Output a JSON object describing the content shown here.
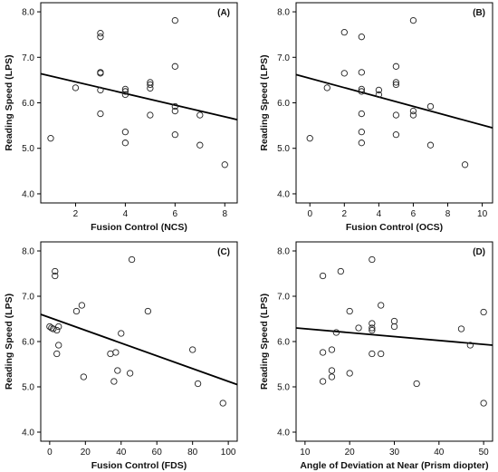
{
  "chart_data": [
    {
      "type": "scatter",
      "panel_label": "(A)",
      "xlabel": "Fusion Control (NCS)",
      "ylabel": "Reading Speed (LPS)",
      "xlim": [
        0.6,
        8.5
      ],
      "ylim": [
        3.8,
        8.2
      ],
      "xticks": [
        2,
        4,
        6,
        8
      ],
      "yticks": [
        4.0,
        5.0,
        6.0,
        7.0,
        8.0
      ],
      "xtick_labels": [
        "2",
        "4",
        "6",
        "8"
      ],
      "ytick_labels": [
        "4.0",
        "5.0",
        "6.0",
        "7.0",
        "8.0"
      ],
      "grid": false,
      "points": [
        {
          "x": 1,
          "y": 5.22
        },
        {
          "x": 2,
          "y": 6.33
        },
        {
          "x": 3,
          "y": 7.53
        },
        {
          "x": 3,
          "y": 7.45
        },
        {
          "x": 3,
          "y": 6.67
        },
        {
          "x": 3,
          "y": 6.65
        },
        {
          "x": 3,
          "y": 6.28
        },
        {
          "x": 3,
          "y": 5.76
        },
        {
          "x": 4,
          "y": 6.3
        },
        {
          "x": 4,
          "y": 6.25
        },
        {
          "x": 4,
          "y": 6.18
        },
        {
          "x": 4,
          "y": 5.36
        },
        {
          "x": 4,
          "y": 5.12
        },
        {
          "x": 5,
          "y": 6.45
        },
        {
          "x": 5,
          "y": 6.4
        },
        {
          "x": 5,
          "y": 6.32
        },
        {
          "x": 5,
          "y": 5.73
        },
        {
          "x": 6,
          "y": 7.81
        },
        {
          "x": 6,
          "y": 6.8
        },
        {
          "x": 6,
          "y": 5.92
        },
        {
          "x": 6,
          "y": 5.82
        },
        {
          "x": 6,
          "y": 5.3
        },
        {
          "x": 7,
          "y": 5.73
        },
        {
          "x": 7,
          "y": 5.07
        },
        {
          "x": 8,
          "y": 4.64
        }
      ],
      "fit_line": {
        "x": [
          0.6,
          8.5
        ],
        "y": [
          6.64,
          5.63
        ]
      }
    },
    {
      "type": "scatter",
      "panel_label": "(B)",
      "xlabel": "Fusion Control (OCS)",
      "ylabel": "Reading Speed (LPS)",
      "xlim": [
        -0.8,
        10.6
      ],
      "ylim": [
        3.8,
        8.2
      ],
      "xticks": [
        0,
        2,
        4,
        6,
        8,
        10
      ],
      "yticks": [
        4.0,
        5.0,
        6.0,
        7.0,
        8.0
      ],
      "xtick_labels": [
        "0",
        "2",
        "4",
        "6",
        "8",
        "10"
      ],
      "ytick_labels": [
        "4.0",
        "5.0",
        "6.0",
        "7.0",
        "8.0"
      ],
      "grid": false,
      "points": [
        {
          "x": 0,
          "y": 5.22
        },
        {
          "x": 1,
          "y": 6.33
        },
        {
          "x": 2,
          "y": 7.55
        },
        {
          "x": 2,
          "y": 6.65
        },
        {
          "x": 3,
          "y": 7.45
        },
        {
          "x": 3,
          "y": 6.67
        },
        {
          "x": 3,
          "y": 6.3
        },
        {
          "x": 3,
          "y": 6.25
        },
        {
          "x": 3,
          "y": 5.76
        },
        {
          "x": 3,
          "y": 5.36
        },
        {
          "x": 3,
          "y": 5.12
        },
        {
          "x": 4,
          "y": 6.28
        },
        {
          "x": 4,
          "y": 6.18
        },
        {
          "x": 5,
          "y": 6.8
        },
        {
          "x": 5,
          "y": 6.45
        },
        {
          "x": 5,
          "y": 6.4
        },
        {
          "x": 5,
          "y": 5.73
        },
        {
          "x": 5,
          "y": 5.3
        },
        {
          "x": 6,
          "y": 7.81
        },
        {
          "x": 6,
          "y": 5.82
        },
        {
          "x": 6,
          "y": 5.73
        },
        {
          "x": 7,
          "y": 5.92
        },
        {
          "x": 7,
          "y": 5.07
        },
        {
          "x": 9,
          "y": 4.64
        }
      ],
      "fit_line": {
        "x": [
          -0.8,
          10.6
        ],
        "y": [
          6.62,
          5.45
        ]
      }
    },
    {
      "type": "scatter",
      "panel_label": "(C)",
      "xlabel": "Fusion Control (FDS)",
      "ylabel": "Reading Speed (LPS)",
      "xlim": [
        -5,
        105
      ],
      "ylim": [
        3.8,
        8.2
      ],
      "xticks": [
        0,
        20,
        40,
        60,
        80,
        100
      ],
      "yticks": [
        4.0,
        5.0,
        6.0,
        7.0,
        8.0
      ],
      "xtick_labels": [
        "0",
        "20",
        "40",
        "60",
        "80",
        "100"
      ],
      "ytick_labels": [
        "4.0",
        "5.0",
        "6.0",
        "7.0",
        "8.0"
      ],
      "grid": false,
      "points": [
        {
          "x": 0,
          "y": 6.33
        },
        {
          "x": 1,
          "y": 6.3
        },
        {
          "x": 2,
          "y": 6.28
        },
        {
          "x": 3,
          "y": 7.55
        },
        {
          "x": 3,
          "y": 7.45
        },
        {
          "x": 4,
          "y": 6.25
        },
        {
          "x": 4,
          "y": 5.73
        },
        {
          "x": 5,
          "y": 6.33
        },
        {
          "x": 5,
          "y": 5.92
        },
        {
          "x": 15,
          "y": 6.67
        },
        {
          "x": 18,
          "y": 6.8
        },
        {
          "x": 19,
          "y": 5.22
        },
        {
          "x": 34,
          "y": 5.73
        },
        {
          "x": 36,
          "y": 5.12
        },
        {
          "x": 37,
          "y": 5.76
        },
        {
          "x": 38,
          "y": 5.36
        },
        {
          "x": 40,
          "y": 6.18
        },
        {
          "x": 45,
          "y": 5.3
        },
        {
          "x": 46,
          "y": 7.81
        },
        {
          "x": 55,
          "y": 6.67
        },
        {
          "x": 80,
          "y": 5.82
        },
        {
          "x": 83,
          "y": 5.07
        },
        {
          "x": 97,
          "y": 4.64
        }
      ],
      "fit_line": {
        "x": [
          -5,
          105
        ],
        "y": [
          6.6,
          5.05
        ]
      }
    },
    {
      "type": "scatter",
      "panel_label": "(D)",
      "xlabel": "Angle of Deviation at Near (Prism diopter)",
      "ylabel": "Reading Speed (LPS)",
      "xlim": [
        8,
        52
      ],
      "ylim": [
        3.8,
        8.2
      ],
      "xticks": [
        10,
        20,
        30,
        40,
        50
      ],
      "yticks": [
        4.0,
        5.0,
        6.0,
        7.0,
        8.0
      ],
      "xtick_labels": [
        "10",
        "20",
        "30",
        "40",
        "50"
      ],
      "ytick_labels": [
        "4.0",
        "5.0",
        "6.0",
        "7.0",
        "8.0"
      ],
      "grid": false,
      "points": [
        {
          "x": 14,
          "y": 7.45
        },
        {
          "x": 14,
          "y": 5.76
        },
        {
          "x": 14,
          "y": 5.12
        },
        {
          "x": 16,
          "y": 5.82
        },
        {
          "x": 16,
          "y": 5.36
        },
        {
          "x": 16,
          "y": 5.22
        },
        {
          "x": 17,
          "y": 6.2
        },
        {
          "x": 18,
          "y": 7.55
        },
        {
          "x": 20,
          "y": 6.67
        },
        {
          "x": 20,
          "y": 5.3
        },
        {
          "x": 22,
          "y": 6.3
        },
        {
          "x": 25,
          "y": 7.81
        },
        {
          "x": 25,
          "y": 6.4
        },
        {
          "x": 25,
          "y": 6.3
        },
        {
          "x": 25,
          "y": 6.25
        },
        {
          "x": 25,
          "y": 5.73
        },
        {
          "x": 27,
          "y": 6.8
        },
        {
          "x": 27,
          "y": 5.73
        },
        {
          "x": 30,
          "y": 6.45
        },
        {
          "x": 30,
          "y": 6.33
        },
        {
          "x": 35,
          "y": 5.07
        },
        {
          "x": 45,
          "y": 6.28
        },
        {
          "x": 47,
          "y": 5.92
        },
        {
          "x": 50,
          "y": 6.65
        },
        {
          "x": 50,
          "y": 4.64
        }
      ],
      "fit_line": {
        "x": [
          8,
          52
        ],
        "y": [
          6.3,
          5.92
        ]
      }
    }
  ]
}
